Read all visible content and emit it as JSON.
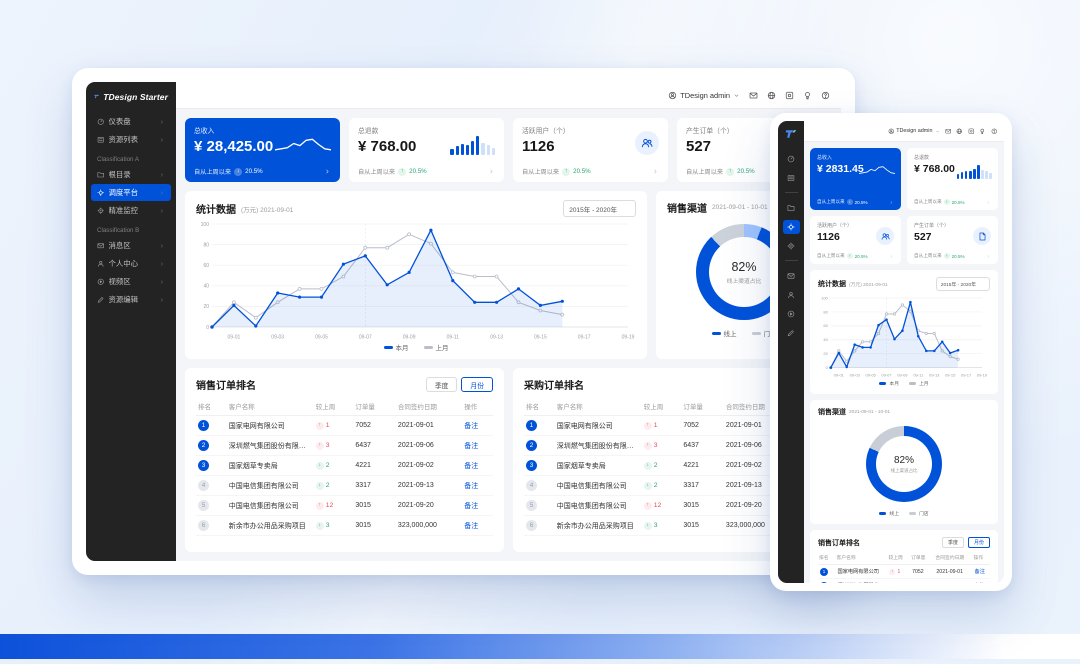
{
  "brand": {
    "name": "TDesign Starter",
    "primary_color": "#0052d9"
  },
  "topbar": {
    "user": "TDesign admin",
    "icons": [
      "mail-icon",
      "globe-icon",
      "github-icon",
      "bulb-icon",
      "help-icon"
    ]
  },
  "sidebar": {
    "groups": [
      {
        "label": "",
        "items": [
          {
            "id": "dashboard",
            "label": "仪表盘",
            "icon": "dashboard-icon"
          },
          {
            "id": "resource-list",
            "label": "资源列表",
            "icon": "list-icon"
          }
        ]
      },
      {
        "label": "Classification A",
        "items": [
          {
            "id": "root-directory",
            "label": "根目录",
            "icon": "folder-icon"
          },
          {
            "id": "dispatch-platform",
            "label": "调度平台",
            "icon": "control-platform-icon",
            "active": true
          },
          {
            "id": "precise-monitor",
            "label": "精准监控",
            "icon": "monitor-icon"
          }
        ]
      },
      {
        "label": "Classification B",
        "items": [
          {
            "id": "message-area",
            "label": "消息区",
            "icon": "mail-icon"
          },
          {
            "id": "personal-center",
            "label": "个人中心",
            "icon": "user-icon"
          },
          {
            "id": "video-area",
            "label": "视频区",
            "icon": "play-icon"
          },
          {
            "id": "resource-edit",
            "label": "资源编辑",
            "icon": "edit-icon"
          }
        ]
      }
    ]
  },
  "cards": [
    {
      "id": "total-revenue",
      "title": "总收入",
      "value": "¥ 28,425.00",
      "value_mobile": "¥ 2831.45",
      "since": "自从上周以来",
      "trend": "down",
      "trend_value": "20.5%",
      "visual": "line",
      "spark_values": [
        2,
        2.5,
        3,
        5,
        4,
        6.5,
        7,
        4.5,
        2.5,
        2
      ],
      "variant": "primary"
    },
    {
      "id": "total-refund",
      "title": "总退款",
      "value": "¥ 768.00",
      "since": "自从上周以来",
      "trend": "up",
      "trend_value": "20.5%",
      "visual": "bars",
      "spark_values": [
        5,
        7,
        9,
        8,
        11,
        15,
        10,
        8,
        6
      ]
    },
    {
      "id": "active-users",
      "title": "活跃用户（个）",
      "value": "1126",
      "since": "自从上周以来",
      "trend": "up",
      "trend_value": "20.5%",
      "visual": "usergroup"
    },
    {
      "id": "orders-created",
      "title": "产生订单（个）",
      "value": "527",
      "since": "自从上周以来",
      "trend": "up",
      "trend_value": "20.5%",
      "visual": "file"
    }
  ],
  "panels": {
    "statistics": {
      "title": "统计数据",
      "unit": "(万元)",
      "date": "2021-09-01",
      "range": "2015年 - 2020年"
    },
    "sales_channel": {
      "title": "销售渠道",
      "date_range": "2021-09-01 - 10-01",
      "center_value": "82%",
      "center_label": "线上渠道占比"
    },
    "sales_ranking": {
      "title": "销售订单排名",
      "btn_quarter": "季度",
      "btn_month": "月份"
    },
    "purchase_ranking": {
      "title": "采购订单排名"
    }
  },
  "order_table": {
    "columns": [
      "排名",
      "客户名称",
      "较上周",
      "订单量",
      "合同签约日期",
      "操作"
    ],
    "rows": [
      {
        "rank": 1,
        "name": "国家电网有限公司",
        "trend": "up",
        "delta": "1",
        "volume": "7052",
        "date": "2021-09-01",
        "action": "备注"
      },
      {
        "rank": 2,
        "name": "深圳燃气集团股份有限公司",
        "trend": "up",
        "delta": "3",
        "volume": "6437",
        "date": "2021-09-06",
        "action": "备注"
      },
      {
        "rank": 3,
        "name": "国家烟草专卖局",
        "trend": "down",
        "delta": "2",
        "volume": "4221",
        "date": "2021-09-02",
        "action": "备注"
      },
      {
        "rank": 4,
        "name": "中国电信集团有限公司",
        "trend": "down",
        "delta": "2",
        "volume": "3317",
        "date": "2021-09-13",
        "action": "备注"
      },
      {
        "rank": 5,
        "name": "中国电信集团有限公司",
        "trend": "up",
        "delta": "12",
        "volume": "3015",
        "date": "2021-09-20",
        "action": "备注"
      },
      {
        "rank": 6,
        "name": "新余市办公用品采购项目",
        "trend": "down",
        "delta": "3",
        "volume": "3015",
        "date": "323,000,000",
        "action": "备注"
      }
    ]
  },
  "chart_data": [
    {
      "id": "statistics-trend",
      "type": "line",
      "title": "统计数据",
      "unit": "(万元)",
      "subtitle": "2021-09-01",
      "slots": 20,
      "x_ticks": [
        "09-01",
        "09-03",
        "09-05",
        "09-07",
        "09-09",
        "09-11",
        "09-13",
        "09-15",
        "09-17",
        "09-19"
      ],
      "tick_indices": [
        1,
        3,
        5,
        7,
        9,
        11,
        13,
        15,
        17,
        19
      ],
      "ylim": [
        0,
        100
      ],
      "y_ticks": [
        0,
        20,
        40,
        60,
        80,
        100
      ],
      "grid": true,
      "legend_position": "bottom",
      "series": [
        {
          "name": "本月",
          "color": "#0052d9",
          "area": true,
          "values": [
            0,
            21,
            1,
            33,
            29,
            29,
            61,
            69,
            41,
            53,
            94,
            45,
            24,
            24,
            37,
            21,
            25
          ]
        },
        {
          "name": "上月",
          "color": "#b9bec8",
          "area": false,
          "values": [
            0,
            24,
            9,
            24,
            37,
            37,
            49,
            77,
            77,
            90,
            81,
            53,
            49,
            49,
            24,
            16,
            12
          ]
        }
      ]
    },
    {
      "id": "sales-channel-donut",
      "type": "pie",
      "title": "销售渠道",
      "center_value": "82%",
      "center_label": "线上渠道占比",
      "slices": [
        {
          "name": "线上",
          "value": 82,
          "color": "#0052d9"
        },
        {
          "name": "门店",
          "value": 18,
          "color": "#c9ced6"
        }
      ],
      "segments_desktop": [
        {
          "color": "#9ec3ff",
          "pct": 6
        },
        {
          "color": "#0052d9",
          "pct": 82
        },
        {
          "color": "#ccd2da",
          "pct": 12
        }
      ],
      "segments_mobile": [
        {
          "color": "#0052d9",
          "pct": 82
        },
        {
          "color": "#c9ced6",
          "pct": 18
        }
      ]
    },
    {
      "id": "revenue-sparkline",
      "type": "line",
      "series": [
        {
          "name": "总收入走势",
          "values": [
            2,
            2.5,
            3,
            5,
            4,
            6.5,
            7,
            4.5,
            2.5,
            2
          ]
        }
      ]
    },
    {
      "id": "refund-sparkbars",
      "type": "bar",
      "values": [
        5,
        7,
        9,
        8,
        11,
        15,
        10,
        8,
        6
      ]
    }
  ]
}
